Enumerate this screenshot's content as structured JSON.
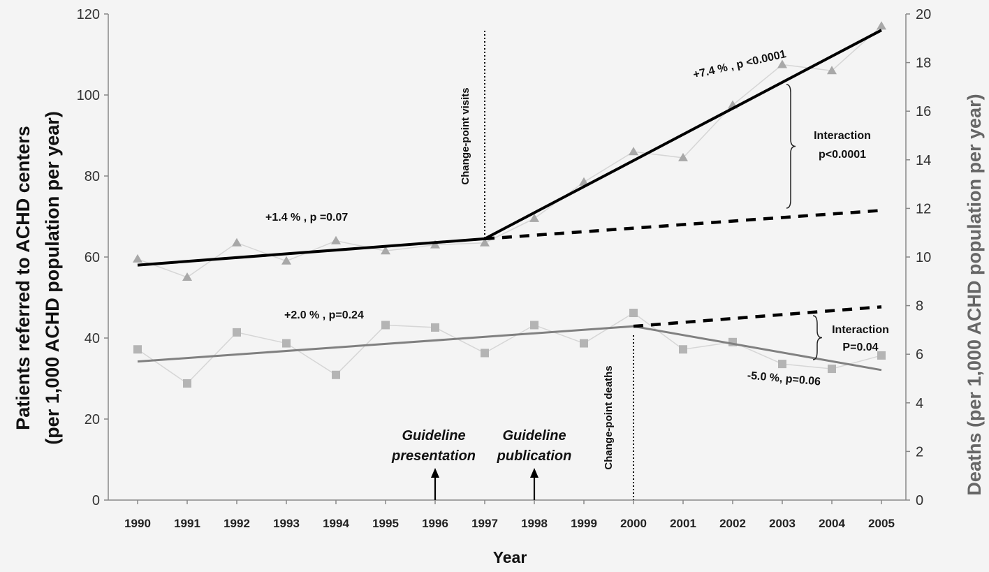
{
  "chart_data": {
    "type": "line",
    "xlabel": "Year",
    "ylabel_left_line1": "Patients referred to ACHD centers",
    "ylabel_left_line2": "(per 1,000 ACHD population per year)",
    "ylabel_right": "Deaths (per 1,000 ACHD population per year)",
    "x": [
      1990,
      1991,
      1992,
      1993,
      1994,
      1995,
      1996,
      1997,
      1998,
      1999,
      2000,
      2001,
      2002,
      2003,
      2004,
      2005
    ],
    "xlim": [
      1990,
      2005
    ],
    "ylim_left": [
      0,
      120
    ],
    "yticks_left": [
      0,
      20,
      40,
      60,
      80,
      100,
      120
    ],
    "ylim_right": [
      0,
      20
    ],
    "yticks_right": [
      0,
      2,
      4,
      6,
      8,
      10,
      12,
      14,
      16,
      18,
      20
    ],
    "grid": false,
    "series": [
      {
        "axis": "left",
        "marker": "triangle",
        "color": "#a8a8a8",
        "values": [
          59.5,
          55,
          63.5,
          59,
          64,
          61.5,
          63,
          63.5,
          69.5,
          78.5,
          86,
          84.5,
          97.5,
          107.5,
          106,
          117
        ]
      },
      {
        "axis": "right",
        "marker": "square",
        "color": "#b4b4b4",
        "values": [
          6.2,
          4.8,
          6.9,
          6.45,
          5.15,
          7.2,
          7.1,
          6.05,
          7.2,
          6.45,
          7.7,
          6.2,
          6.5,
          5.6,
          5.4,
          5.95
        ]
      }
    ],
    "trend_lines": [
      {
        "axis": "left",
        "style": "solid",
        "color": "#000000",
        "x": [
          1990,
          1997
        ],
        "y": [
          58,
          64.5
        ]
      },
      {
        "axis": "left",
        "style": "solid",
        "color": "#000000",
        "x": [
          1997,
          2005
        ],
        "y": [
          64.5,
          116
        ]
      },
      {
        "axis": "left",
        "style": "dashed",
        "color": "#000000",
        "x": [
          1997,
          2005
        ],
        "y": [
          64.5,
          71.5
        ]
      },
      {
        "axis": "right",
        "style": "solid",
        "color": "#808080",
        "x": [
          1990,
          2000
        ],
        "y": [
          5.7,
          7.15
        ]
      },
      {
        "axis": "right",
        "style": "solid",
        "color": "#808080",
        "x": [
          2000,
          2005
        ],
        "y": [
          7.15,
          5.35
        ]
      },
      {
        "axis": "right",
        "style": "dashed",
        "color": "#000000",
        "x": [
          2000,
          2005
        ],
        "y": [
          7.15,
          7.95
        ]
      }
    ],
    "change_points": [
      {
        "x": 1997,
        "label": "Change-point visits"
      },
      {
        "x": 2000,
        "label": "Change-point deaths"
      }
    ],
    "events": [
      {
        "x": 1996,
        "line1": "Guideline",
        "line2": "presentation"
      },
      {
        "x": 1998,
        "line1": "Guideline",
        "line2": "publication"
      }
    ],
    "annotations": {
      "visits_pre": "+1.4 % , p =0.07",
      "visits_post": "+7.4 % , p <0.0001",
      "visits_interaction_line1": "Interaction",
      "visits_interaction_line2": "p<0.0001",
      "deaths_pre": "+2.0 % , p=0.24",
      "deaths_post": "-5.0 %, p=0.06",
      "deaths_interaction_line1": "Interaction",
      "deaths_interaction_line2": "P=0.04"
    }
  }
}
